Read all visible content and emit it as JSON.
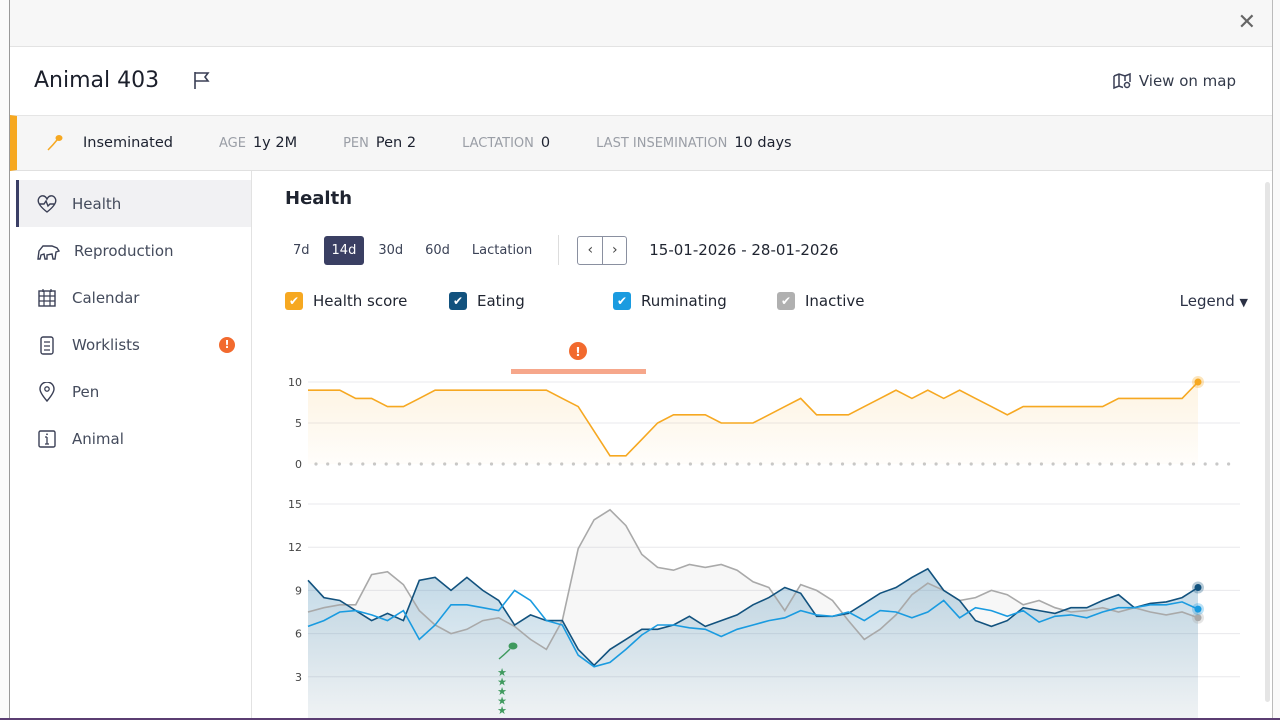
{
  "window": {
    "close_icon": "close-icon"
  },
  "header": {
    "title": "Animal 403",
    "view_on_map": "View on map"
  },
  "info": {
    "status": "Inseminated",
    "age_label": "AGE",
    "age": "1y 2M",
    "pen_label": "PEN",
    "pen": "Pen 2",
    "lactation_label": "LACTATION",
    "lactation": "0",
    "last_insem_label": "LAST INSEMINATION",
    "last_insem": "10 days",
    "accent": "#f6a821"
  },
  "sidebar": {
    "items": [
      {
        "label": "Health",
        "icon": "heart-pulse-icon",
        "active": true
      },
      {
        "label": "Reproduction",
        "icon": "cow-icon"
      },
      {
        "label": "Calendar",
        "icon": "calendar-icon"
      },
      {
        "label": "Worklists",
        "icon": "clipboard-icon",
        "badge": "!"
      },
      {
        "label": "Pen",
        "icon": "location-pin-icon"
      },
      {
        "label": "Animal",
        "icon": "info-icon"
      }
    ]
  },
  "main": {
    "title": "Health",
    "ranges": [
      "7d",
      "14d",
      "30d",
      "60d",
      "Lactation"
    ],
    "active_range": "14d",
    "date_range": "15-01-2026 - 28-01-2026",
    "legend_button": "Legend",
    "series_toggles": [
      {
        "label": "Health score",
        "color": "#f6a821",
        "checked": true
      },
      {
        "label": "Eating",
        "color": "#12527e",
        "checked": true
      },
      {
        "label": "Ruminating",
        "color": "#1a9be0",
        "checked": true
      },
      {
        "label": "Inactive",
        "color": "#a9a9a9",
        "checked": true
      }
    ]
  },
  "chart_data": [
    {
      "type": "line",
      "title": "",
      "ylim": [
        0,
        10
      ],
      "yticks": [
        "0",
        "5",
        "10"
      ],
      "grid": true,
      "x_range": [
        "15-01-2026",
        "28-01-2026"
      ],
      "series": [
        {
          "name": "Health score",
          "color": "#f6a821",
          "values": [
            9,
            9,
            9,
            8,
            8,
            7,
            7,
            8,
            9,
            9,
            9,
            9,
            9,
            9,
            9,
            9,
            8,
            7,
            4,
            1,
            1,
            3,
            5,
            6,
            6,
            6,
            5,
            5,
            5,
            6,
            7,
            8,
            6,
            6,
            6,
            7,
            8,
            9,
            8,
            9,
            8,
            9,
            8,
            7,
            6,
            7,
            7,
            7,
            7,
            7,
            7,
            8,
            8,
            8,
            8,
            8,
            10
          ]
        }
      ],
      "annotations": [
        {
          "type": "alert",
          "icon": "alert-icon",
          "color": "#f26a2e"
        }
      ]
    },
    {
      "type": "line",
      "title": "",
      "ylim": [
        0,
        15
      ],
      "yticks": [
        "3",
        "6",
        "9",
        "12",
        "15"
      ],
      "grid": true,
      "x_range": [
        "15-01-2026",
        "28-01-2026"
      ],
      "series": [
        {
          "name": "Inactive",
          "color": "#a9a9a9",
          "values": [
            7.5,
            7.8,
            8,
            8,
            10.1,
            10.3,
            9.4,
            7.6,
            6.6,
            6,
            6.3,
            6.9,
            7.1,
            6.5,
            5.6,
            4.9,
            6.9,
            11.9,
            13.9,
            14.6,
            13.5,
            11.5,
            10.6,
            10.4,
            10.8,
            10.6,
            10.8,
            10.4,
            9.6,
            9.2,
            7.6,
            9.4,
            9,
            8.3,
            6.9,
            5.6,
            6.3,
            7.3,
            8.7,
            9.5,
            9,
            8.3,
            8.5,
            9,
            8.7,
            8,
            8.3,
            7.8,
            7.5,
            7.6,
            7.8,
            7.5,
            7.8,
            7.5,
            7.3,
            7.5,
            7.1
          ]
        },
        {
          "name": "Eating",
          "color": "#12527e",
          "values": [
            9.7,
            8.5,
            8.3,
            7.6,
            6.9,
            7.4,
            6.9,
            9.7,
            9.9,
            9,
            9.9,
            9,
            8.3,
            6.6,
            7.3,
            6.9,
            6.9,
            4.9,
            3.8,
            4.9,
            5.6,
            6.3,
            6.3,
            6.6,
            7.2,
            6.5,
            6.9,
            7.3,
            8,
            8.5,
            9.2,
            8.8,
            7.2,
            7.2,
            7.4,
            8.1,
            8.8,
            9.2,
            9.9,
            10.5,
            9,
            8.3,
            6.9,
            6.5,
            6.9,
            7.8,
            7.6,
            7.4,
            7.8,
            7.8,
            8.3,
            8.7,
            7.8,
            8.1,
            8.2,
            8.5,
            9.2
          ]
        },
        {
          "name": "Ruminating",
          "color": "#1a9be0",
          "values": [
            6.5,
            6.9,
            7.5,
            7.6,
            7.3,
            6.9,
            7.6,
            5.6,
            6.6,
            8,
            8,
            7.8,
            7.6,
            9,
            8.3,
            6.9,
            6.6,
            4.5,
            3.7,
            4,
            4.9,
            5.9,
            6.6,
            6.6,
            6.4,
            6.3,
            5.8,
            6.3,
            6.6,
            6.9,
            7.1,
            7.6,
            7.3,
            7.2,
            7.5,
            6.9,
            7.6,
            7.5,
            7.1,
            7.5,
            8.3,
            7.1,
            7.8,
            7.6,
            7.2,
            7.6,
            6.8,
            7.2,
            7.3,
            7.1,
            7.5,
            7.8,
            7.8,
            8,
            8,
            8.2,
            7.7
          ]
        }
      ],
      "annotations": [
        {
          "type": "insemination",
          "icon": "sperm-icon",
          "color": "#3f9a5e"
        },
        {
          "type": "heat-rating",
          "icon": "star-icon",
          "stars": 5,
          "color": "#3f9a5e"
        }
      ]
    }
  ]
}
